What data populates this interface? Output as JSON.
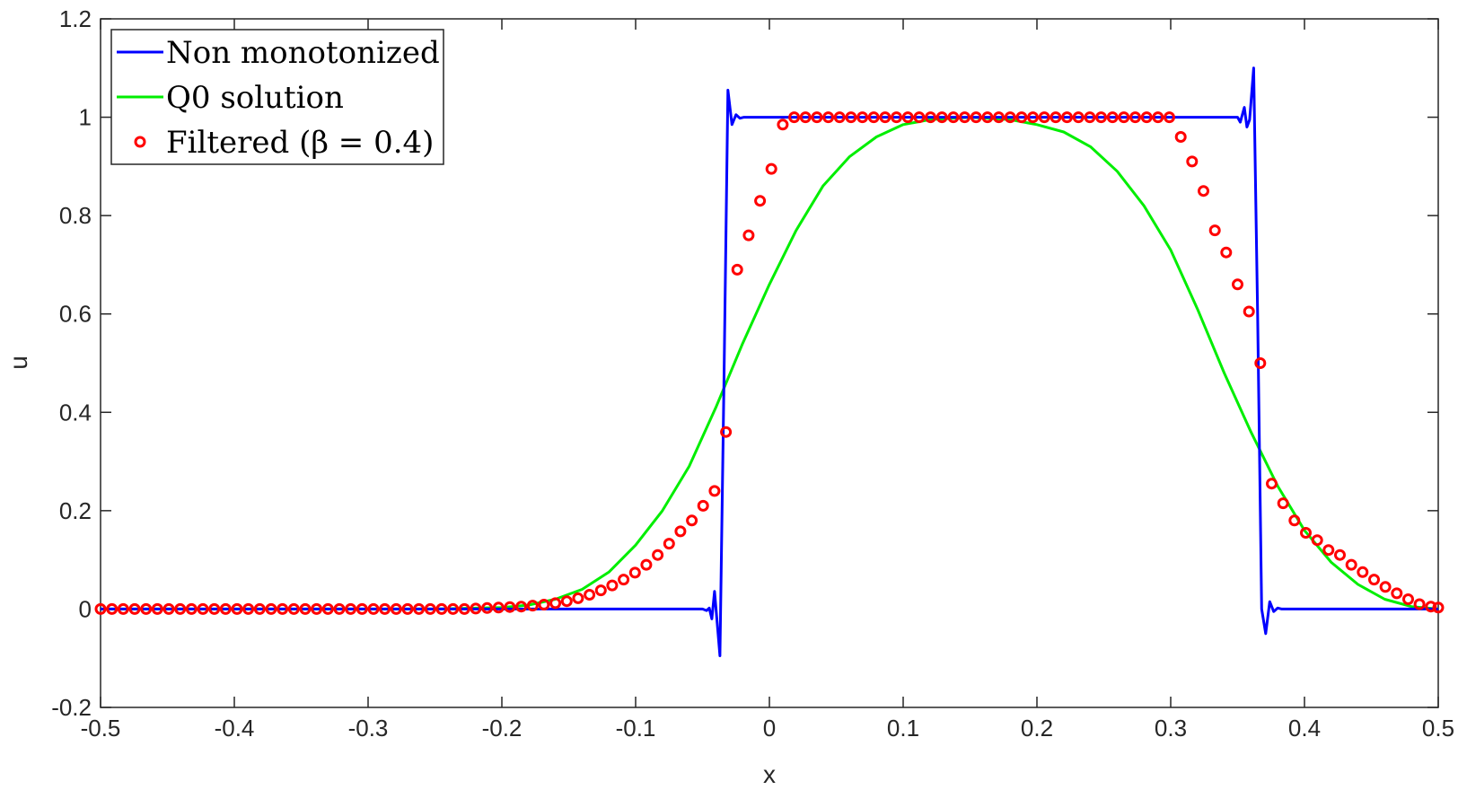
{
  "chart_data": {
    "type": "line",
    "xlabel": "x",
    "ylabel": "u",
    "xlim": [
      -0.5,
      0.5
    ],
    "ylim": [
      -0.2,
      1.2
    ],
    "xticks": [
      "-0.5",
      "-0.4",
      "-0.3",
      "-0.2",
      "-0.1",
      "0",
      "0.1",
      "0.2",
      "0.3",
      "0.4",
      "0.5"
    ],
    "yticks": [
      "-0.2",
      "0",
      "0.2",
      "0.4",
      "0.6",
      "0.8",
      "1",
      "1.2"
    ],
    "grid": false,
    "legend_position": "top-left",
    "series": [
      {
        "name": "Non monotonized",
        "style": "line",
        "color": "#0000ff",
        "points": [
          [
            -0.5,
            0.0
          ],
          [
            -0.06,
            0.0
          ],
          [
            -0.05,
            0.0
          ],
          [
            -0.047,
            -0.003
          ],
          [
            -0.045,
            0.002
          ],
          [
            -0.043,
            -0.02
          ],
          [
            -0.041,
            0.036
          ],
          [
            -0.037,
            -0.095
          ],
          [
            -0.034,
            0.45
          ],
          [
            -0.031,
            1.055
          ],
          [
            -0.028,
            0.985
          ],
          [
            -0.025,
            1.005
          ],
          [
            -0.022,
            0.998
          ],
          [
            -0.019,
            1.0
          ],
          [
            0.35,
            1.0
          ],
          [
            0.352,
            0.99
          ],
          [
            0.355,
            1.02
          ],
          [
            0.357,
            0.98
          ],
          [
            0.359,
            0.995
          ],
          [
            0.362,
            1.1
          ],
          [
            0.365,
            0.6
          ],
          [
            0.368,
            0.0
          ],
          [
            0.371,
            -0.05
          ],
          [
            0.374,
            0.015
          ],
          [
            0.377,
            -0.005
          ],
          [
            0.38,
            0.002
          ],
          [
            0.383,
            0.0
          ],
          [
            0.5,
            0.0
          ]
        ]
      },
      {
        "name": "Q0 solution",
        "style": "line",
        "color": "#00ee00",
        "points": [
          [
            -0.5,
            0.0
          ],
          [
            -0.25,
            0.0
          ],
          [
            -0.2,
            0.003
          ],
          [
            -0.18,
            0.008
          ],
          [
            -0.16,
            0.02
          ],
          [
            -0.14,
            0.04
          ],
          [
            -0.12,
            0.075
          ],
          [
            -0.1,
            0.13
          ],
          [
            -0.08,
            0.2
          ],
          [
            -0.06,
            0.29
          ],
          [
            -0.04,
            0.41
          ],
          [
            -0.02,
            0.54
          ],
          [
            0.0,
            0.66
          ],
          [
            0.02,
            0.77
          ],
          [
            0.04,
            0.86
          ],
          [
            0.06,
            0.92
          ],
          [
            0.08,
            0.96
          ],
          [
            0.1,
            0.985
          ],
          [
            0.12,
            0.995
          ],
          [
            0.15,
            1.0
          ],
          [
            0.18,
            0.995
          ],
          [
            0.2,
            0.985
          ],
          [
            0.22,
            0.97
          ],
          [
            0.24,
            0.94
          ],
          [
            0.26,
            0.89
          ],
          [
            0.28,
            0.82
          ],
          [
            0.3,
            0.73
          ],
          [
            0.32,
            0.61
          ],
          [
            0.34,
            0.48
          ],
          [
            0.36,
            0.36
          ],
          [
            0.38,
            0.25
          ],
          [
            0.4,
            0.16
          ],
          [
            0.42,
            0.095
          ],
          [
            0.44,
            0.05
          ],
          [
            0.46,
            0.02
          ],
          [
            0.48,
            0.005
          ],
          [
            0.5,
            0.0
          ]
        ]
      },
      {
        "name": "Filtered (β = 0.4)",
        "style": "markers",
        "color": "#ff0000",
        "points": [
          [
            -0.5,
            0.0
          ],
          [
            -0.4915,
            0.0
          ],
          [
            -0.483,
            0.0
          ],
          [
            -0.4745,
            0.0
          ],
          [
            -0.466,
            0.0
          ],
          [
            -0.4575,
            0.0
          ],
          [
            -0.449,
            0.0
          ],
          [
            -0.4405,
            0.0
          ],
          [
            -0.432,
            0.0
          ],
          [
            -0.4235,
            0.0
          ],
          [
            -0.415,
            0.0
          ],
          [
            -0.4065,
            0.0
          ],
          [
            -0.398,
            0.0
          ],
          [
            -0.3895,
            0.0
          ],
          [
            -0.381,
            0.0
          ],
          [
            -0.3725,
            0.0
          ],
          [
            -0.364,
            0.0
          ],
          [
            -0.3555,
            0.0
          ],
          [
            -0.347,
            0.0
          ],
          [
            -0.3385,
            0.0
          ],
          [
            -0.33,
            0.0
          ],
          [
            -0.3215,
            0.0
          ],
          [
            -0.313,
            0.0
          ],
          [
            -0.3045,
            0.0
          ],
          [
            -0.296,
            0.0
          ],
          [
            -0.2875,
            0.0
          ],
          [
            -0.279,
            0.0
          ],
          [
            -0.2705,
            0.0
          ],
          [
            -0.262,
            0.0
          ],
          [
            -0.2535,
            0.0
          ],
          [
            -0.245,
            0.0
          ],
          [
            -0.2365,
            0.0
          ],
          [
            -0.228,
            0.0
          ],
          [
            -0.2195,
            0.001
          ],
          [
            -0.211,
            0.002
          ],
          [
            -0.2025,
            0.003
          ],
          [
            -0.194,
            0.004
          ],
          [
            -0.1855,
            0.005
          ],
          [
            -0.177,
            0.007
          ],
          [
            -0.1685,
            0.009
          ],
          [
            -0.16,
            0.012
          ],
          [
            -0.1515,
            0.016
          ],
          [
            -0.143,
            0.022
          ],
          [
            -0.1345,
            0.029
          ],
          [
            -0.126,
            0.038
          ],
          [
            -0.1175,
            0.048
          ],
          [
            -0.109,
            0.06
          ],
          [
            -0.1005,
            0.074
          ],
          [
            -0.092,
            0.09
          ],
          [
            -0.0835,
            0.11
          ],
          [
            -0.075,
            0.133
          ],
          [
            -0.0665,
            0.158
          ],
          [
            -0.058,
            0.18
          ],
          [
            -0.0495,
            0.21
          ],
          [
            -0.041,
            0.24
          ],
          [
            -0.0325,
            0.36
          ],
          [
            -0.024,
            0.69
          ],
          [
            -0.0155,
            0.76
          ],
          [
            -0.007,
            0.83
          ],
          [
            0.0015,
            0.895
          ],
          [
            0.01,
            0.985
          ],
          [
            0.0185,
            1.0
          ],
          [
            0.027,
            1.0
          ],
          [
            0.0355,
            1.0
          ],
          [
            0.044,
            1.0
          ],
          [
            0.0525,
            1.0
          ],
          [
            0.061,
            1.0
          ],
          [
            0.0695,
            1.0
          ],
          [
            0.078,
            1.0
          ],
          [
            0.0865,
            1.0
          ],
          [
            0.095,
            1.0
          ],
          [
            0.1035,
            1.0
          ],
          [
            0.112,
            1.0
          ],
          [
            0.1205,
            1.0
          ],
          [
            0.129,
            1.0
          ],
          [
            0.1375,
            1.0
          ],
          [
            0.146,
            1.0
          ],
          [
            0.1545,
            1.0
          ],
          [
            0.163,
            1.0
          ],
          [
            0.1715,
            1.0
          ],
          [
            0.18,
            1.0
          ],
          [
            0.1885,
            1.0
          ],
          [
            0.197,
            1.0
          ],
          [
            0.2055,
            1.0
          ],
          [
            0.214,
            1.0
          ],
          [
            0.2225,
            1.0
          ],
          [
            0.231,
            1.0
          ],
          [
            0.2395,
            1.0
          ],
          [
            0.248,
            1.0
          ],
          [
            0.2565,
            1.0
          ],
          [
            0.265,
            1.0
          ],
          [
            0.2735,
            1.0
          ],
          [
            0.282,
            1.0
          ],
          [
            0.2905,
            1.0
          ],
          [
            0.299,
            1.0
          ],
          [
            0.3075,
            0.96
          ],
          [
            0.316,
            0.91
          ],
          [
            0.3245,
            0.85
          ],
          [
            0.333,
            0.77
          ],
          [
            0.3415,
            0.725
          ],
          [
            0.35,
            0.66
          ],
          [
            0.3585,
            0.605
          ],
          [
            0.367,
            0.5
          ],
          [
            0.3755,
            0.255
          ],
          [
            0.384,
            0.215
          ],
          [
            0.3925,
            0.18
          ],
          [
            0.401,
            0.155
          ],
          [
            0.4095,
            0.14
          ],
          [
            0.418,
            0.12
          ],
          [
            0.4265,
            0.11
          ],
          [
            0.435,
            0.09
          ],
          [
            0.4435,
            0.075
          ],
          [
            0.452,
            0.06
          ],
          [
            0.4605,
            0.045
          ],
          [
            0.469,
            0.032
          ],
          [
            0.4775,
            0.02
          ],
          [
            0.486,
            0.01
          ],
          [
            0.4945,
            0.005
          ],
          [
            0.5,
            0.003
          ]
        ]
      }
    ]
  },
  "legend": {
    "entries": [
      {
        "label": "Non monotonized",
        "color": "#0000ff",
        "marker": "line"
      },
      {
        "label": "Q0 solution",
        "color": "#00ee00",
        "marker": "line"
      },
      {
        "label": "Filtered (β = 0.4)",
        "color": "#ff0000",
        "marker": "circle"
      }
    ]
  }
}
